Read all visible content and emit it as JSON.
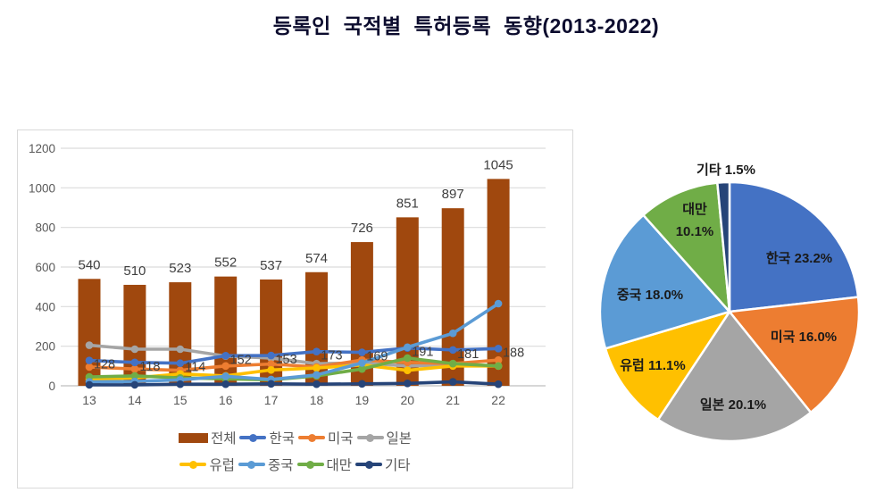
{
  "page": {
    "title": "등록인 국적별 특허등록 동향(2013-2022)"
  },
  "chart_data": [
    {
      "type": "bar",
      "subtype": "combo-bar-line",
      "categories": [
        "13",
        "14",
        "15",
        "16",
        "17",
        "18",
        "19",
        "20",
        "21",
        "22"
      ],
      "ylim": [
        0,
        1200
      ],
      "yticks": [
        0,
        200,
        400,
        600,
        800,
        1000,
        1200
      ],
      "grid": true,
      "series": [
        {
          "name": "전체",
          "kind": "bar",
          "color": "#A0480E",
          "data_labels": true,
          "values": [
            540,
            510,
            523,
            552,
            537,
            574,
            726,
            851,
            897,
            1045
          ]
        },
        {
          "name": "한국",
          "kind": "line",
          "color": "#4472C4",
          "data_labels": true,
          "values": [
            128,
            118,
            114,
            152,
            153,
            173,
            169,
            191,
            181,
            188
          ]
        },
        {
          "name": "미국",
          "kind": "line",
          "color": "#ED7D31",
          "data_labels": false,
          "values": [
            95,
            85,
            78,
            100,
            110,
            95,
            130,
            118,
            112,
            130
          ]
        },
        {
          "name": "일본",
          "kind": "line",
          "color": "#A5A5A5",
          "data_labels": false,
          "values": [
            205,
            185,
            185,
            150,
            140,
            112,
            115,
            100,
            105,
            100
          ]
        },
        {
          "name": "유럽",
          "kind": "line",
          "color": "#FFC000",
          "data_labels": false,
          "values": [
            32,
            40,
            60,
            50,
            80,
            90,
            105,
            78,
            100,
            100
          ]
        },
        {
          "name": "중국",
          "kind": "line",
          "color": "#5B9BD5",
          "data_labels": false,
          "values": [
            20,
            22,
            30,
            48,
            32,
            55,
            115,
            195,
            265,
            415
          ]
        },
        {
          "name": "대만",
          "kind": "line",
          "color": "#70AD47",
          "data_labels": false,
          "values": [
            45,
            50,
            40,
            35,
            30,
            50,
            85,
            140,
            112,
            100
          ]
        },
        {
          "name": "기타",
          "kind": "line",
          "color": "#264478",
          "data_labels": false,
          "values": [
            5,
            5,
            8,
            8,
            10,
            8,
            10,
            12,
            20,
            8
          ]
        }
      ],
      "legend_rows": [
        [
          "전체",
          "한국",
          "미국",
          "일본"
        ],
        [
          "유럽",
          "중국",
          "대만",
          "기타"
        ]
      ],
      "legend_position": "bottom"
    },
    {
      "type": "pie",
      "start_angle_deg": 0,
      "direction": "clockwise",
      "slices": [
        {
          "name": "한국",
          "pct": 23.2,
          "color": "#4472C4"
        },
        {
          "name": "미국",
          "pct": 16.0,
          "color": "#ED7D31"
        },
        {
          "name": "일본",
          "pct": 20.1,
          "color": "#A5A5A5"
        },
        {
          "name": "유럽",
          "pct": 11.1,
          "color": "#FFC000"
        },
        {
          "name": "중국",
          "pct": 18.0,
          "color": "#5B9BD5"
        },
        {
          "name": "대만",
          "pct": 10.1,
          "color": "#70AD47"
        },
        {
          "name": "기타",
          "pct": 1.5,
          "color": "#264478"
        }
      ]
    }
  ]
}
